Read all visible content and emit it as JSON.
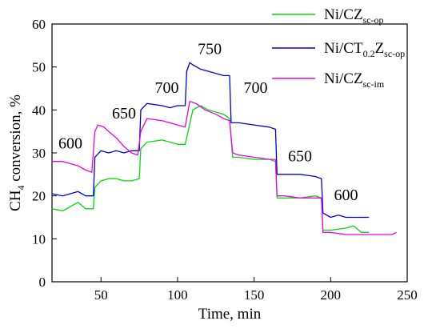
{
  "chart_data": {
    "type": "line",
    "xlabel": "Time, min",
    "ylabel_main": "CH",
    "ylabel_sub": "4",
    "ylabel_rest": " conversion, %",
    "xlim": [
      18,
      250
    ],
    "ylim": [
      0,
      60
    ],
    "xticks": [
      50,
      100,
      150,
      200,
      250
    ],
    "yticks": [
      0,
      10,
      20,
      30,
      40,
      50,
      60
    ],
    "grid": false,
    "legend_position": "top-right",
    "annotations": [
      {
        "text": "600",
        "x": 30,
        "y": 31
      },
      {
        "text": "650",
        "x": 65,
        "y": 38
      },
      {
        "text": "700",
        "x": 93,
        "y": 44
      },
      {
        "text": "750",
        "x": 121,
        "y": 53
      },
      {
        "text": "700",
        "x": 151,
        "y": 44
      },
      {
        "text": "650",
        "x": 180,
        "y": 28
      },
      {
        "text": "600",
        "x": 210,
        "y": 19
      }
    ],
    "series": [
      {
        "name_main": "Ni/CZ",
        "name_sub": "sc-op",
        "color": "#00dd00",
        "points": [
          [
            18,
            17
          ],
          [
            25,
            16.5
          ],
          [
            30,
            17.5
          ],
          [
            35,
            18.5
          ],
          [
            40,
            17
          ],
          [
            45,
            17
          ],
          [
            46,
            22
          ],
          [
            50,
            23.5
          ],
          [
            55,
            24
          ],
          [
            60,
            24
          ],
          [
            65,
            23.5
          ],
          [
            70,
            23.5
          ],
          [
            75,
            24
          ],
          [
            76,
            31
          ],
          [
            80,
            32.5
          ],
          [
            90,
            33
          ],
          [
            100,
            32
          ],
          [
            105,
            32
          ],
          [
            110,
            40
          ],
          [
            115,
            41
          ],
          [
            120,
            40
          ],
          [
            125,
            39.5
          ],
          [
            130,
            39
          ],
          [
            134,
            38
          ],
          [
            136,
            29
          ],
          [
            140,
            29
          ],
          [
            150,
            28.5
          ],
          [
            160,
            28.5
          ],
          [
            164,
            28
          ],
          [
            165,
            19.5
          ],
          [
            170,
            19.5
          ],
          [
            180,
            19.5
          ],
          [
            190,
            20
          ],
          [
            194,
            19.5
          ],
          [
            195,
            12
          ],
          [
            200,
            12
          ],
          [
            210,
            12.5
          ],
          [
            215,
            13
          ],
          [
            220,
            11.5
          ],
          [
            225,
            11.5
          ]
        ]
      },
      {
        "name_main": "Ni/CT",
        "name_sub1": "0.2",
        "name_main2": "Z",
        "name_sub2": "sc-op",
        "color": "#0000dd",
        "points": [
          [
            18,
            20.5
          ],
          [
            25,
            20
          ],
          [
            30,
            20.5
          ],
          [
            35,
            21
          ],
          [
            40,
            20
          ],
          [
            45,
            20
          ],
          [
            46,
            29
          ],
          [
            50,
            30.5
          ],
          [
            55,
            30
          ],
          [
            60,
            30.5
          ],
          [
            65,
            30
          ],
          [
            70,
            30.5
          ],
          [
            75,
            30.5
          ],
          [
            76,
            40
          ],
          [
            80,
            41.5
          ],
          [
            90,
            41
          ],
          [
            95,
            40.5
          ],
          [
            100,
            41
          ],
          [
            105,
            41
          ],
          [
            106,
            49
          ],
          [
            108,
            51
          ],
          [
            110,
            50.5
          ],
          [
            115,
            49.5
          ],
          [
            120,
            49
          ],
          [
            125,
            48.5
          ],
          [
            130,
            48
          ],
          [
            134,
            48
          ],
          [
            135,
            37
          ],
          [
            140,
            37
          ],
          [
            150,
            36.5
          ],
          [
            160,
            36
          ],
          [
            164,
            35.5
          ],
          [
            165,
            25
          ],
          [
            170,
            25
          ],
          [
            180,
            25
          ],
          [
            190,
            24.5
          ],
          [
            194,
            24
          ],
          [
            195,
            16
          ],
          [
            200,
            15
          ],
          [
            205,
            15.5
          ],
          [
            210,
            15
          ],
          [
            215,
            15
          ],
          [
            220,
            15
          ],
          [
            225,
            15
          ]
        ]
      },
      {
        "name_main": "Ni/CZ",
        "name_sub": "sc-im",
        "color": "#ee00ee",
        "points": [
          [
            18,
            28
          ],
          [
            25,
            28
          ],
          [
            30,
            27.5
          ],
          [
            35,
            27
          ],
          [
            40,
            26
          ],
          [
            44,
            25.5
          ],
          [
            46,
            35
          ],
          [
            48,
            36.5
          ],
          [
            52,
            36
          ],
          [
            55,
            35
          ],
          [
            60,
            33.5
          ],
          [
            65,
            31.5
          ],
          [
            70,
            30
          ],
          [
            74,
            29.5
          ],
          [
            76,
            35
          ],
          [
            80,
            38
          ],
          [
            90,
            37.5
          ],
          [
            100,
            36.5
          ],
          [
            105,
            36
          ],
          [
            108,
            42
          ],
          [
            112,
            41.5
          ],
          [
            118,
            40
          ],
          [
            125,
            39
          ],
          [
            130,
            38
          ],
          [
            134,
            37.5
          ],
          [
            136,
            30
          ],
          [
            140,
            29.5
          ],
          [
            150,
            29
          ],
          [
            160,
            28.5
          ],
          [
            164,
            28.5
          ],
          [
            165,
            20
          ],
          [
            170,
            20
          ],
          [
            180,
            19.5
          ],
          [
            190,
            19.5
          ],
          [
            194,
            19.5
          ],
          [
            195,
            11.5
          ],
          [
            200,
            11.5
          ],
          [
            210,
            11
          ],
          [
            220,
            11
          ],
          [
            230,
            11
          ],
          [
            240,
            11
          ],
          [
            243,
            11.5
          ]
        ]
      }
    ]
  }
}
